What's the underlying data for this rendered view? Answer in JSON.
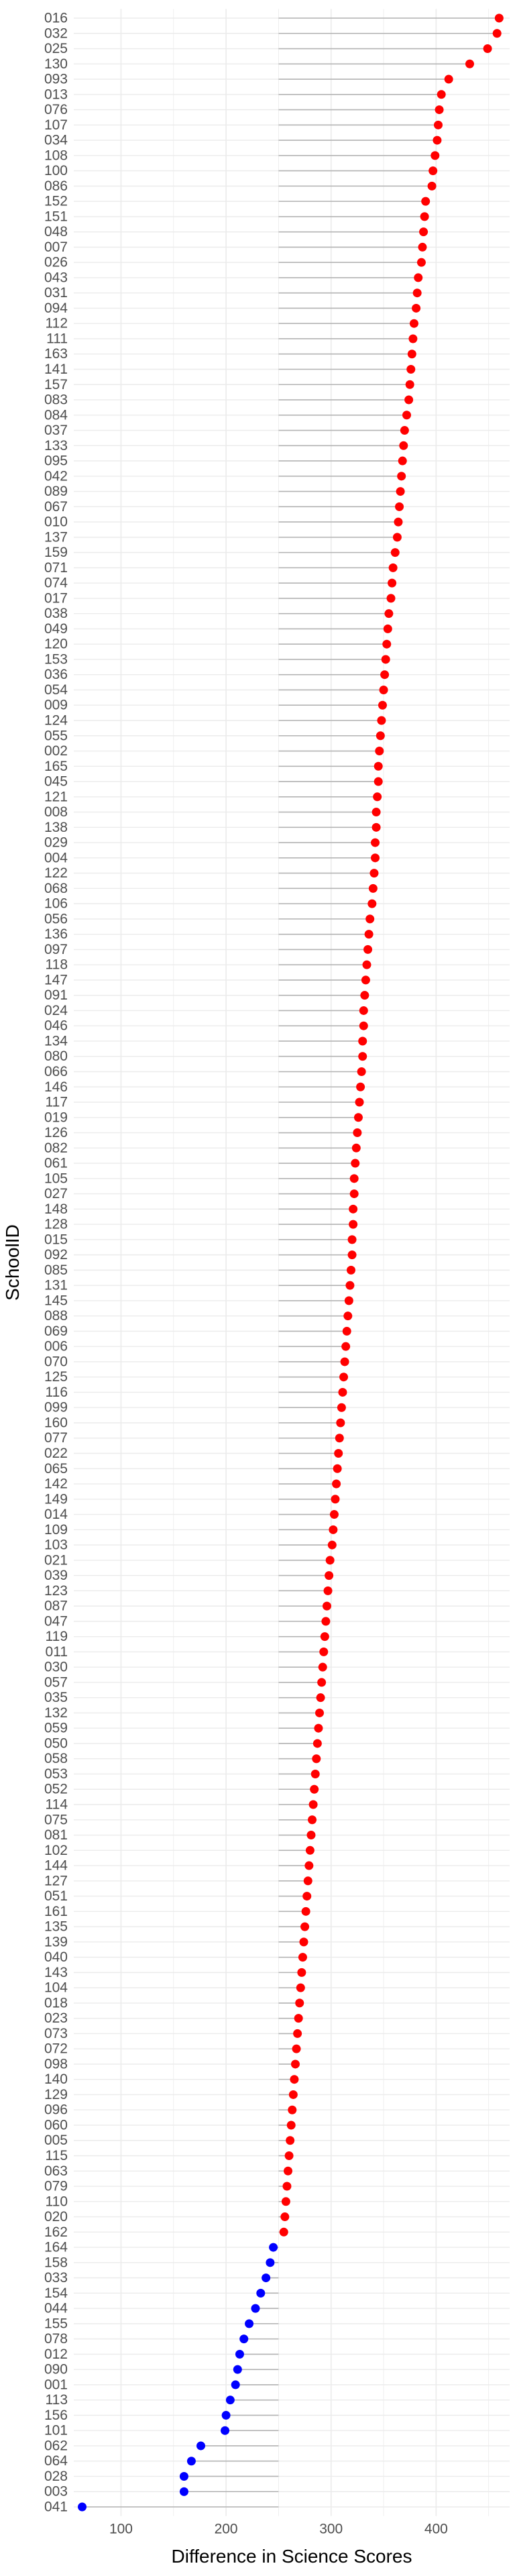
{
  "chart_data": {
    "type": "scatter",
    "subtype": "lollipop",
    "xlabel": "Difference in Science Scores",
    "ylabel": "SchoolID",
    "xlim": [
      55,
      470
    ],
    "xticks": [
      100,
      200,
      300,
      400
    ],
    "segment_origin": 250,
    "grid": true,
    "colors": {
      "above": "#ff0000",
      "below": "#0000ff",
      "segment": "#b3b3b3",
      "grid": "#ebebeb"
    },
    "points": [
      {
        "id": "016",
        "value": 460
      },
      {
        "id": "032",
        "value": 458
      },
      {
        "id": "025",
        "value": 449
      },
      {
        "id": "130",
        "value": 432
      },
      {
        "id": "093",
        "value": 412
      },
      {
        "id": "013",
        "value": 405
      },
      {
        "id": "076",
        "value": 403
      },
      {
        "id": "107",
        "value": 402
      },
      {
        "id": "034",
        "value": 401
      },
      {
        "id": "108",
        "value": 399
      },
      {
        "id": "100",
        "value": 397
      },
      {
        "id": "086",
        "value": 396
      },
      {
        "id": "152",
        "value": 390
      },
      {
        "id": "151",
        "value": 389
      },
      {
        "id": "048",
        "value": 388
      },
      {
        "id": "007",
        "value": 387
      },
      {
        "id": "026",
        "value": 386
      },
      {
        "id": "043",
        "value": 383
      },
      {
        "id": "031",
        "value": 382
      },
      {
        "id": "094",
        "value": 381
      },
      {
        "id": "112",
        "value": 379
      },
      {
        "id": "111",
        "value": 378
      },
      {
        "id": "163",
        "value": 377
      },
      {
        "id": "141",
        "value": 376
      },
      {
        "id": "157",
        "value": 375
      },
      {
        "id": "083",
        "value": 374
      },
      {
        "id": "084",
        "value": 372
      },
      {
        "id": "037",
        "value": 370
      },
      {
        "id": "133",
        "value": 369
      },
      {
        "id": "095",
        "value": 368
      },
      {
        "id": "042",
        "value": 367
      },
      {
        "id": "089",
        "value": 366
      },
      {
        "id": "067",
        "value": 365
      },
      {
        "id": "010",
        "value": 364
      },
      {
        "id": "137",
        "value": 363
      },
      {
        "id": "159",
        "value": 361
      },
      {
        "id": "071",
        "value": 359
      },
      {
        "id": "074",
        "value": 358
      },
      {
        "id": "017",
        "value": 357
      },
      {
        "id": "038",
        "value": 355
      },
      {
        "id": "049",
        "value": 354
      },
      {
        "id": "120",
        "value": 353
      },
      {
        "id": "153",
        "value": 352
      },
      {
        "id": "036",
        "value": 351
      },
      {
        "id": "054",
        "value": 350
      },
      {
        "id": "009",
        "value": 349
      },
      {
        "id": "124",
        "value": 348
      },
      {
        "id": "055",
        "value": 347
      },
      {
        "id": "002",
        "value": 346
      },
      {
        "id": "165",
        "value": 345
      },
      {
        "id": "045",
        "value": 345
      },
      {
        "id": "121",
        "value": 344
      },
      {
        "id": "008",
        "value": 343
      },
      {
        "id": "138",
        "value": 343
      },
      {
        "id": "029",
        "value": 342
      },
      {
        "id": "004",
        "value": 342
      },
      {
        "id": "122",
        "value": 341
      },
      {
        "id": "068",
        "value": 340
      },
      {
        "id": "106",
        "value": 339
      },
      {
        "id": "056",
        "value": 337
      },
      {
        "id": "136",
        "value": 336
      },
      {
        "id": "097",
        "value": 335
      },
      {
        "id": "118",
        "value": 334
      },
      {
        "id": "147",
        "value": 333
      },
      {
        "id": "091",
        "value": 332
      },
      {
        "id": "024",
        "value": 331
      },
      {
        "id": "046",
        "value": 331
      },
      {
        "id": "134",
        "value": 330
      },
      {
        "id": "080",
        "value": 330
      },
      {
        "id": "066",
        "value": 329
      },
      {
        "id": "146",
        "value": 328
      },
      {
        "id": "117",
        "value": 327
      },
      {
        "id": "019",
        "value": 326
      },
      {
        "id": "126",
        "value": 325
      },
      {
        "id": "082",
        "value": 324
      },
      {
        "id": "061",
        "value": 323
      },
      {
        "id": "105",
        "value": 322
      },
      {
        "id": "027",
        "value": 322
      },
      {
        "id": "148",
        "value": 321
      },
      {
        "id": "128",
        "value": 321
      },
      {
        "id": "015",
        "value": 320
      },
      {
        "id": "092",
        "value": 320
      },
      {
        "id": "085",
        "value": 319
      },
      {
        "id": "131",
        "value": 318
      },
      {
        "id": "145",
        "value": 317
      },
      {
        "id": "088",
        "value": 316
      },
      {
        "id": "069",
        "value": 315
      },
      {
        "id": "006",
        "value": 314
      },
      {
        "id": "070",
        "value": 313
      },
      {
        "id": "125",
        "value": 312
      },
      {
        "id": "116",
        "value": 311
      },
      {
        "id": "099",
        "value": 310
      },
      {
        "id": "160",
        "value": 309
      },
      {
        "id": "077",
        "value": 308
      },
      {
        "id": "022",
        "value": 307
      },
      {
        "id": "065",
        "value": 306
      },
      {
        "id": "142",
        "value": 305
      },
      {
        "id": "149",
        "value": 304
      },
      {
        "id": "014",
        "value": 303
      },
      {
        "id": "109",
        "value": 302
      },
      {
        "id": "103",
        "value": 301
      },
      {
        "id": "021",
        "value": 299
      },
      {
        "id": "039",
        "value": 298
      },
      {
        "id": "123",
        "value": 297
      },
      {
        "id": "087",
        "value": 296
      },
      {
        "id": "047",
        "value": 295
      },
      {
        "id": "119",
        "value": 294
      },
      {
        "id": "011",
        "value": 293
      },
      {
        "id": "030",
        "value": 292
      },
      {
        "id": "057",
        "value": 291
      },
      {
        "id": "035",
        "value": 290
      },
      {
        "id": "132",
        "value": 289
      },
      {
        "id": "059",
        "value": 288
      },
      {
        "id": "050",
        "value": 287
      },
      {
        "id": "058",
        "value": 286
      },
      {
        "id": "053",
        "value": 285
      },
      {
        "id": "052",
        "value": 284
      },
      {
        "id": "114",
        "value": 283
      },
      {
        "id": "075",
        "value": 282
      },
      {
        "id": "081",
        "value": 281
      },
      {
        "id": "102",
        "value": 280
      },
      {
        "id": "144",
        "value": 279
      },
      {
        "id": "127",
        "value": 278
      },
      {
        "id": "051",
        "value": 277
      },
      {
        "id": "161",
        "value": 276
      },
      {
        "id": "135",
        "value": 275
      },
      {
        "id": "139",
        "value": 274
      },
      {
        "id": "040",
        "value": 273
      },
      {
        "id": "143",
        "value": 272
      },
      {
        "id": "104",
        "value": 271
      },
      {
        "id": "018",
        "value": 270
      },
      {
        "id": "023",
        "value": 269
      },
      {
        "id": "073",
        "value": 268
      },
      {
        "id": "072",
        "value": 267
      },
      {
        "id": "098",
        "value": 266
      },
      {
        "id": "140",
        "value": 265
      },
      {
        "id": "129",
        "value": 264
      },
      {
        "id": "096",
        "value": 263
      },
      {
        "id": "060",
        "value": 262
      },
      {
        "id": "005",
        "value": 261
      },
      {
        "id": "115",
        "value": 260
      },
      {
        "id": "063",
        "value": 259
      },
      {
        "id": "079",
        "value": 258
      },
      {
        "id": "110",
        "value": 257
      },
      {
        "id": "020",
        "value": 256
      },
      {
        "id": "162",
        "value": 255
      },
      {
        "id": "164",
        "value": 245
      },
      {
        "id": "158",
        "value": 242
      },
      {
        "id": "033",
        "value": 238
      },
      {
        "id": "154",
        "value": 233
      },
      {
        "id": "044",
        "value": 228
      },
      {
        "id": "155",
        "value": 222
      },
      {
        "id": "078",
        "value": 217
      },
      {
        "id": "012",
        "value": 213
      },
      {
        "id": "090",
        "value": 211
      },
      {
        "id": "001",
        "value": 209
      },
      {
        "id": "113",
        "value": 204
      },
      {
        "id": "156",
        "value": 200
      },
      {
        "id": "101",
        "value": 199
      },
      {
        "id": "062",
        "value": 176
      },
      {
        "id": "064",
        "value": 167
      },
      {
        "id": "028",
        "value": 160
      },
      {
        "id": "003",
        "value": 160
      },
      {
        "id": "041",
        "value": 63
      }
    ]
  }
}
